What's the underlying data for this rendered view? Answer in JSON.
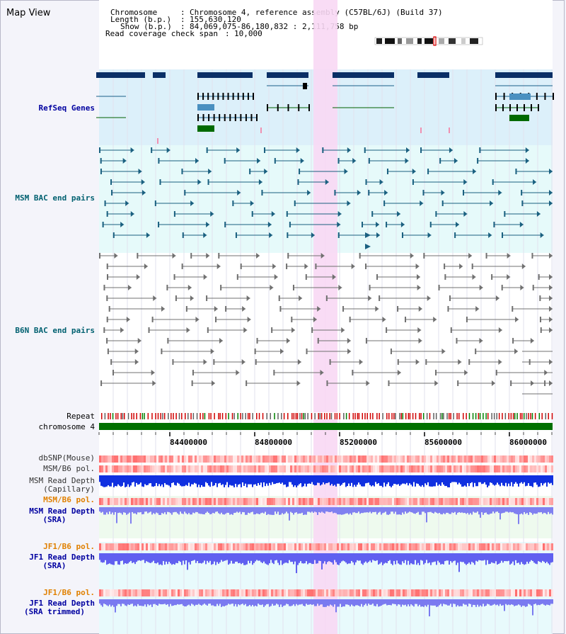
{
  "view": {
    "title": "Map View",
    "header": {
      "chromosome_label": "Chromosome",
      "chromosome_value": "Chromosome 4, reference assembly (C57BL/6J) (Build 37)",
      "length_label": "Length (b.p.)",
      "length_value": "155,630,120",
      "show_label": "Show (b.p.)",
      "show_value": "84,069,075-86,180,832 : 2,111,758 bp",
      "coverage_label": "Read coverage check span",
      "coverage_value": "10,000"
    }
  },
  "tracks": {
    "refseq": "RefSeq Genes",
    "msm_bac": "MSM BAC end pairs",
    "b6n_bac": "B6N BAC end pairs",
    "repeat": "Repeat",
    "chromosome": "chromosome 4",
    "dbsnp": "dbSNP(Mouse)",
    "msm_b6_pol": "MSM/B6 pol.",
    "msm_depth_cap_1": "MSM Read Depth",
    "msm_depth_cap_2": "(Capillary)",
    "msm_b6_pol_2": "MSM/B6 pol.",
    "msm_depth_sra_1": "MSM Read Depth",
    "msm_depth_sra_2": "(SRA)",
    "jf1_b6_pol": "JF1/B6 pol.",
    "jf1_depth_sra_1": "JF1 Read Depth",
    "jf1_depth_sra_2": "(SRA)",
    "jf1_b6_pol_2": "JF1/B6 pol.",
    "jf1_depth_trim_1": "JF1 Read Depth",
    "jf1_depth_trim_2": "(SRA trimmed)"
  },
  "axis": {
    "ticks": [
      "84400000",
      "84800000",
      "85200000",
      "85600000",
      "86000000"
    ]
  },
  "colors": {
    "refseq_bg": "#dcf0fa",
    "bac_bg": "#e6fafa",
    "highlight": "#f8d8f4",
    "gene_dark": "#0a2f66",
    "gene_mid": "#1a6088",
    "chromosome": "#007000",
    "label_blue": "#0000a0",
    "label_teal": "#006070",
    "label_orange": "#e08000"
  }
}
